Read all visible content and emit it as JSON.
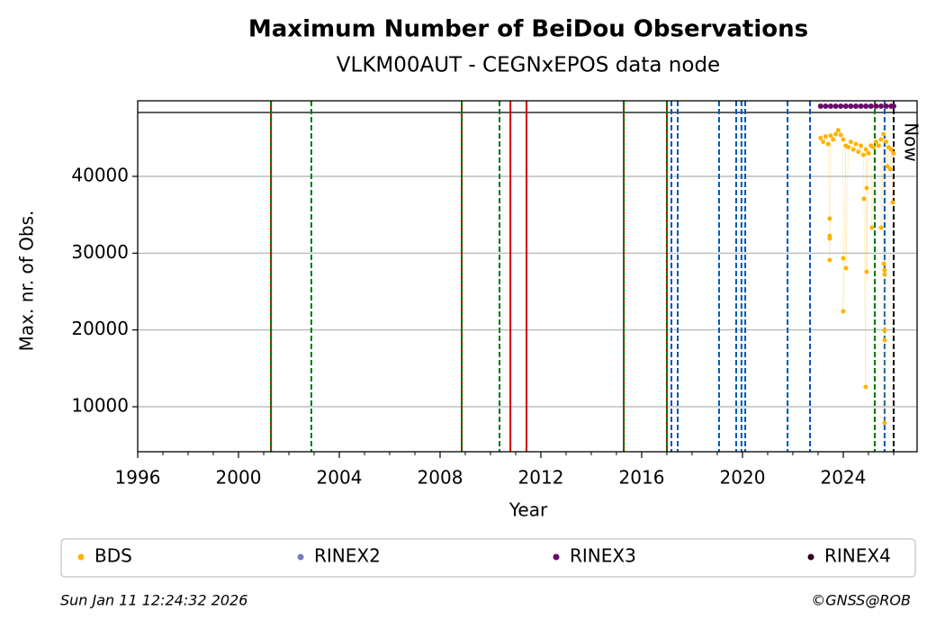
{
  "chart_data": {
    "type": "scatter",
    "title": "Maximum Number of BeiDou Observations",
    "subtitle": "VLKM00AUT - CEGNxEPOS data node",
    "xlabel": "Year",
    "ylabel": "Max. nr. of Obs.",
    "xlim": [
      1996,
      2026.93
    ],
    "ylim": [
      4141,
      49844
    ],
    "xticks": [
      1996,
      2000,
      2004,
      2008,
      2012,
      2016,
      2020,
      2024
    ],
    "xminorticks": [
      1997,
      1998,
      1999,
      2001,
      2002,
      2003,
      2005,
      2006,
      2007,
      2009,
      2010,
      2011,
      2013,
      2014,
      2015,
      2017,
      2018,
      2019,
      2021,
      2022,
      2023,
      2025,
      2026
    ],
    "yticks": [
      10000,
      20000,
      30000,
      40000
    ],
    "grid": "y",
    "hline": 48320,
    "now": {
      "x": 2026.0,
      "label": "Now"
    },
    "events": [
      {
        "x": 2001.29,
        "color": "#cc0000",
        "style": "solid"
      },
      {
        "x": 2008.86,
        "color": "#cc0000",
        "style": "solid"
      },
      {
        "x": 2010.79,
        "color": "#cc0000",
        "style": "solid"
      },
      {
        "x": 2011.43,
        "color": "#cc0000",
        "style": "solid"
      },
      {
        "x": 2015.29,
        "color": "#cc0000",
        "style": "solid"
      },
      {
        "x": 2017.0,
        "color": "#cc0000",
        "style": "solid"
      },
      {
        "x": 2001.29,
        "color": "#007700",
        "style": "dashed"
      },
      {
        "x": 2002.89,
        "color": "#007700",
        "style": "dashed"
      },
      {
        "x": 2008.86,
        "color": "#007700",
        "style": "dashed"
      },
      {
        "x": 2010.36,
        "color": "#007700",
        "style": "dashed"
      },
      {
        "x": 2015.29,
        "color": "#007700",
        "style": "dashed"
      },
      {
        "x": 2017.0,
        "color": "#007700",
        "style": "dashed"
      },
      {
        "x": 2025.25,
        "color": "#007700",
        "style": "dashed"
      },
      {
        "x": 2017.18,
        "color": "#0055bb",
        "style": "dashed"
      },
      {
        "x": 2017.43,
        "color": "#0055bb",
        "style": "dashed"
      },
      {
        "x": 2019.07,
        "color": "#0055bb",
        "style": "dashed"
      },
      {
        "x": 2019.75,
        "color": "#0055bb",
        "style": "dashed"
      },
      {
        "x": 2019.96,
        "color": "#0055bb",
        "style": "dashed"
      },
      {
        "x": 2020.11,
        "color": "#0055bb",
        "style": "dashed"
      },
      {
        "x": 2021.79,
        "color": "#0055bb",
        "style": "dashed"
      },
      {
        "x": 2022.68,
        "color": "#0055bb",
        "style": "dashed"
      },
      {
        "x": 2025.64,
        "color": "#0055bb",
        "style": "dashed"
      }
    ],
    "legend": "below",
    "series": [
      {
        "name": "BDS",
        "color": "#ffb300",
        "x": [
          2023.1,
          2023.2,
          2023.3,
          2023.4,
          2023.46,
          2023.46,
          2023.46,
          2023.46,
          2023.5,
          2023.6,
          2023.7,
          2023.8,
          2023.9,
          2024.0,
          2024.0,
          2024.0,
          2024.1,
          2024.11,
          2024.2,
          2024.3,
          2024.4,
          2024.5,
          2024.6,
          2024.7,
          2024.8,
          2024.82,
          2024.89,
          2024.9,
          2024.93,
          2024.93,
          2025.0,
          2025.1,
          2025.14,
          2025.2,
          2025.3,
          2025.4,
          2025.5,
          2025.5,
          2025.6,
          2025.61,
          2025.64,
          2025.64,
          2025.64,
          2025.64,
          2025.64,
          2025.7,
          2025.75,
          2025.8,
          2025.86,
          2025.9,
          2025.96,
          2026.0
        ],
        "values": [
          45000,
          44500,
          45200,
          44200,
          34490,
          32270,
          31900,
          29100,
          45300,
          44800,
          45500,
          46000,
          45400,
          44800,
          29330,
          22420,
          44000,
          28050,
          43800,
          44500,
          43500,
          44200,
          43200,
          44000,
          42800,
          37070,
          12580,
          43500,
          38480,
          27580,
          43000,
          44000,
          33320,
          43800,
          44500,
          44000,
          44800,
          33320,
          45500,
          28630,
          27800,
          27230,
          19960,
          18670,
          7890,
          44500,
          41290,
          43800,
          40940,
          43500,
          36600,
          43000
        ]
      },
      {
        "name": "RINEX2",
        "color": "#7b7bbf",
        "x": [],
        "values": []
      },
      {
        "name": "RINEX3",
        "color": "#6a0a6a",
        "x": [
          2023.1,
          2023.3,
          2023.5,
          2023.7,
          2023.9,
          2024.1,
          2024.3,
          2024.5,
          2024.7,
          2024.9,
          2025.1,
          2025.3,
          2025.5,
          2025.7,
          2025.9,
          2026.0
        ],
        "values": [
          49140,
          49140,
          49140,
          49140,
          49140,
          49140,
          49140,
          49140,
          49140,
          49140,
          49140,
          49140,
          49140,
          49140,
          49140,
          49140
        ]
      },
      {
        "name": "RINEX4",
        "color": "#2a0020",
        "x": [],
        "values": []
      }
    ],
    "timestamp": "Sun Jan 11 12:24:32 2026",
    "credit": "©GNSS@ROB"
  }
}
